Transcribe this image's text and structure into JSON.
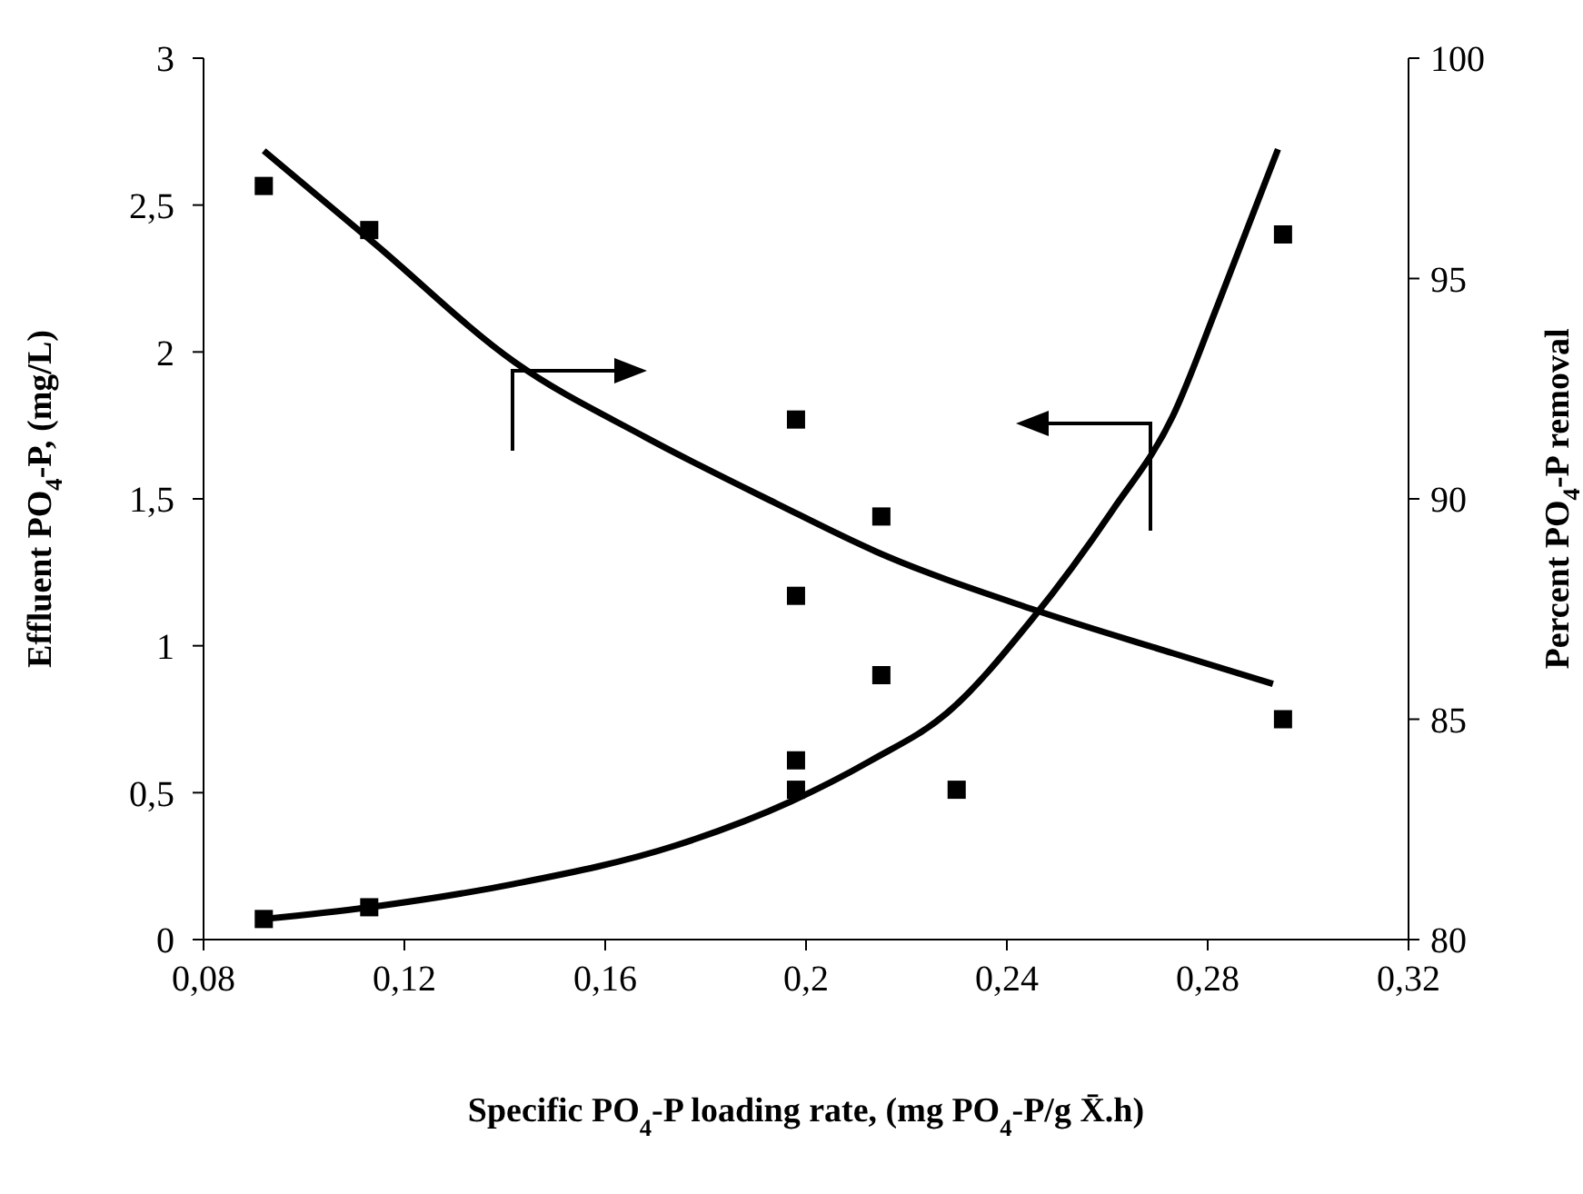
{
  "chart_data": {
    "type": "scatter",
    "xlabel": "Specific PO$_{4}$-P loading rate, (mg PO$_{4}$-P/g X̄.h)",
    "ylabel": "Effluent PO$_{4}$-P, (mg/L)",
    "y2label": "Percent PO$_{4}$-P removal",
    "xlim": [
      0.08,
      0.32
    ],
    "xticks": [
      {
        "value": 0.08,
        "label": "0,08"
      },
      {
        "value": 0.12,
        "label": "0,12"
      },
      {
        "value": 0.16,
        "label": "0,16"
      },
      {
        "value": 0.2,
        "label": "0,2"
      },
      {
        "value": 0.24,
        "label": "0,24"
      },
      {
        "value": 0.28,
        "label": "0,28"
      },
      {
        "value": 0.32,
        "label": "0,32"
      }
    ],
    "ylim": [
      0,
      3
    ],
    "yticks": [
      0,
      {
        "value": 0.5,
        "label": "0,5"
      },
      1,
      {
        "value": 1.5,
        "label": "1,5"
      },
      2,
      {
        "value": 2.5,
        "label": "2,5"
      },
      3
    ],
    "y2lim": [
      80,
      100
    ],
    "y2ticks": [
      80,
      85,
      90,
      95,
      100
    ],
    "marker": "square",
    "series": [
      {
        "color": "#000000",
        "x": [
          0.092,
          0.113,
          0.198,
          0.198,
          0.198,
          0.215,
          0.23,
          0.295
        ],
        "values": [
          0.07,
          0.11,
          0.51,
          0.61,
          1.17,
          0.9,
          0.51,
          2.4
        ]
      },
      {
        "color": "#000000",
        "axis": "y2",
        "x": [
          0.092,
          0.113,
          0.198,
          0.215,
          0.295
        ],
        "values": [
          97.1,
          96.1,
          91.8,
          89.6,
          85.0
        ]
      },
      {
        "type": "line",
        "marker": "none",
        "color": "#000000",
        "x": [
          0.092,
          0.113,
          0.142,
          0.174,
          0.197,
          0.213,
          0.228,
          0.245,
          0.261,
          0.273,
          0.282,
          0.294
        ],
        "values": [
          0.07,
          0.11,
          0.19,
          0.32,
          0.47,
          0.61,
          0.77,
          1.09,
          1.46,
          1.78,
          2.16,
          2.69
        ]
      },
      {
        "type": "line",
        "marker": "none",
        "color": "#000000",
        "axis": "y2",
        "x": [
          0.092,
          0.114,
          0.142,
          0.168,
          0.194,
          0.214,
          0.245,
          0.273,
          0.293
        ],
        "values": [
          97.9,
          95.8,
          93.1,
          91.4,
          89.9,
          88.8,
          87.5,
          86.5,
          85.8
        ]
      }
    ]
  }
}
